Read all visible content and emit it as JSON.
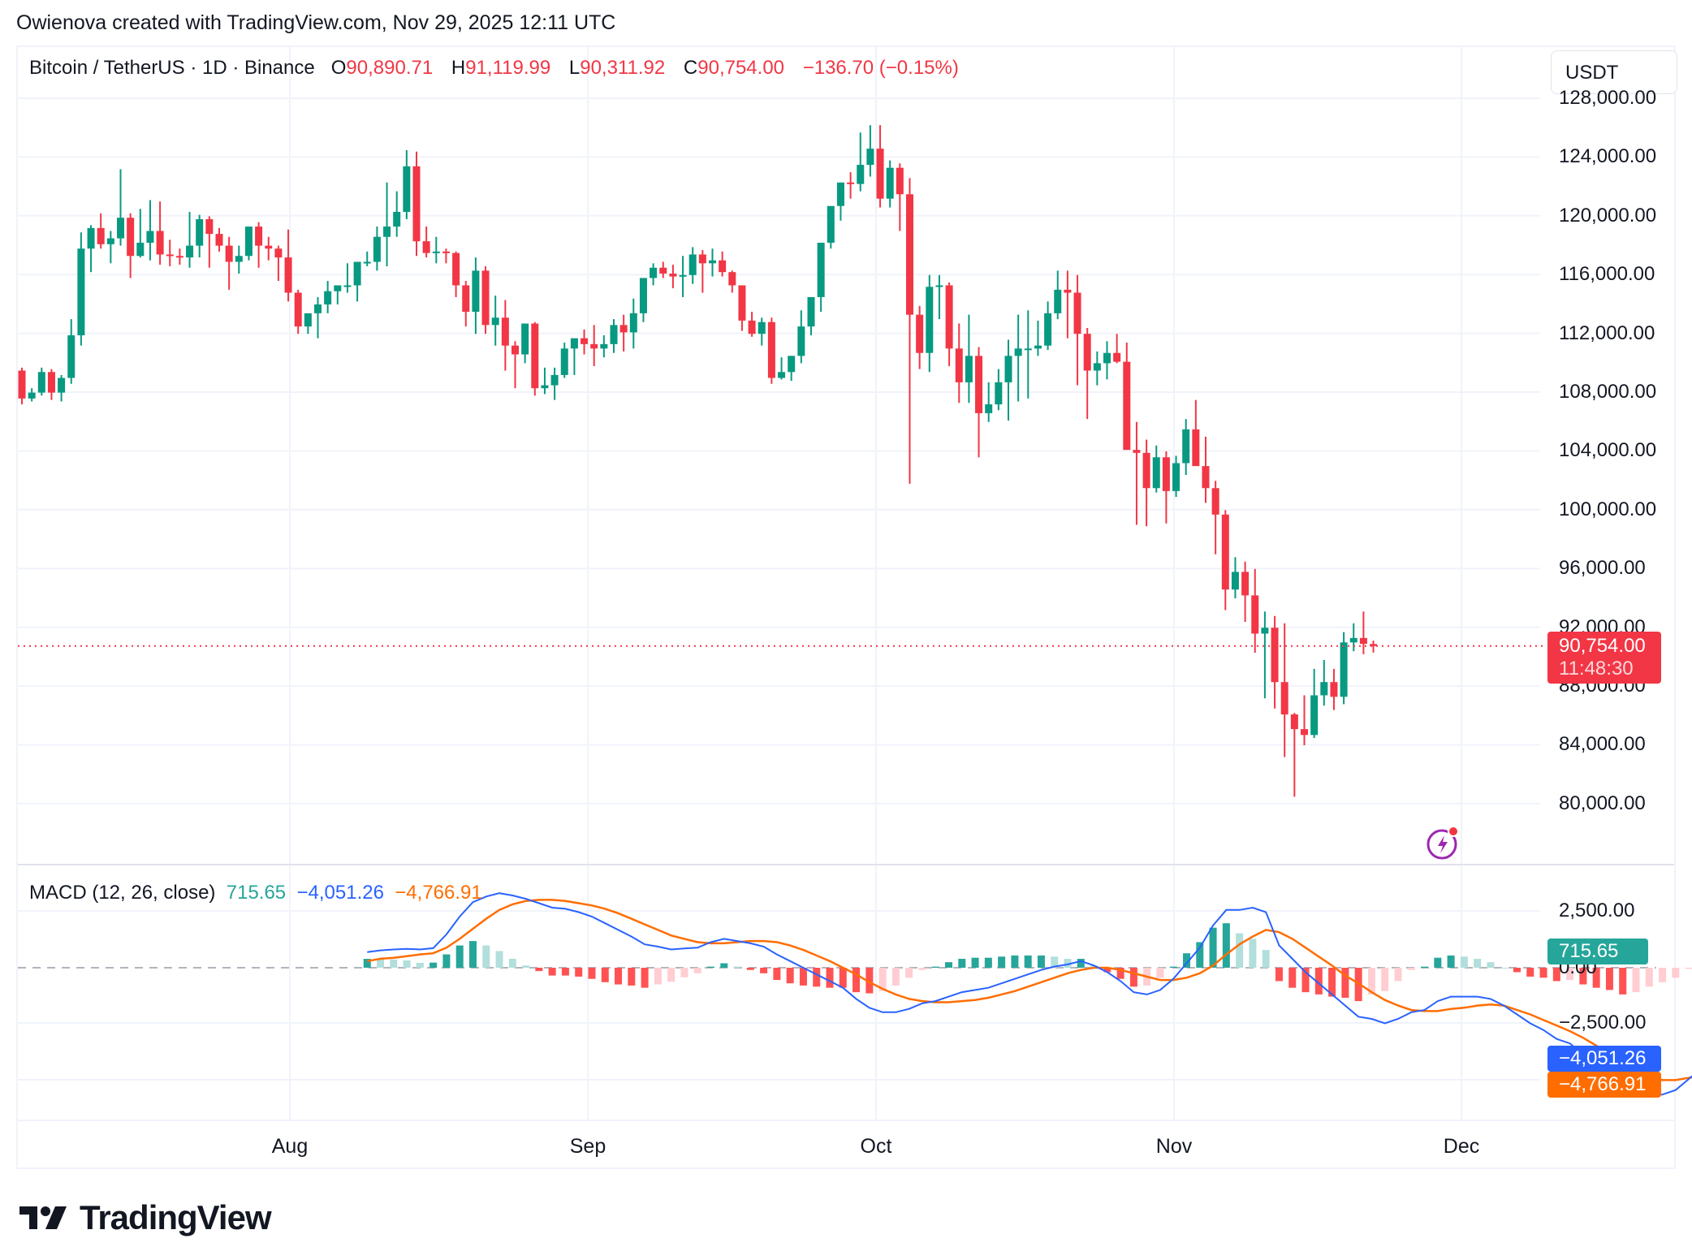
{
  "credit": "Owienova created with TradingView.com, Nov 29, 2025 12:11 UTC",
  "header": {
    "symbol": "Bitcoin / TetherUS · 1D · Binance",
    "o_label": "O",
    "o_value": "90,890.71",
    "h_label": "H",
    "h_value": "91,119.99",
    "l_label": "L",
    "l_value": "90,311.92",
    "c_label": "C",
    "c_value": "90,754.00",
    "change": "−136.70 (−0.15%)"
  },
  "currency_button": "USDT",
  "price_axis": [
    "128,000.00",
    "124,000.00",
    "120,000.00",
    "116,000.00",
    "112,000.00",
    "108,000.00",
    "104,000.00",
    "100,000.00",
    "96,000.00",
    "92,000.00",
    "88,000.00",
    "84,000.00",
    "80,000.00"
  ],
  "last_price": {
    "value": "90,754.00",
    "countdown": "11:48:30"
  },
  "macd": {
    "title": "MACD (12, 26, close)",
    "histogram": "715.65",
    "macd": "−4,051.26",
    "signal": "−4,766.91",
    "axis": [
      "2,500.00",
      "0.00",
      "−2,500.00"
    ]
  },
  "date_axis": [
    "Aug",
    "Sep",
    "Oct",
    "Nov",
    "Dec"
  ],
  "brand": "TradingView",
  "colors": {
    "up": "#089981",
    "down": "#f23645",
    "macd_line": "#2962ff",
    "signal_line": "#ff6d00",
    "hist_up_strong": "#26a69a",
    "hist_up_weak": "#b2dfdb",
    "hist_down_strong": "#ff5252",
    "hist_down_weak": "#ffcdd2"
  },
  "chart_data": [
    {
      "type": "candlestick",
      "title": "Bitcoin / TetherUS · 1D · Binance",
      "ylabel": "USDT",
      "ylim": [
        77000,
        129000
      ],
      "x_ticks": [
        "Aug",
        "Sep",
        "Oct",
        "Nov",
        "Dec"
      ],
      "start_date_approx": "2025-07-09",
      "ohlc": [
        [
          109500,
          109700,
          107200,
          107600
        ],
        [
          107600,
          108300,
          107400,
          108000
        ],
        [
          108000,
          109700,
          107800,
          109400
        ],
        [
          109400,
          109600,
          107500,
          108000
        ],
        [
          108000,
          109200,
          107400,
          109000
        ],
        [
          109000,
          113000,
          108600,
          111900
        ],
        [
          111900,
          118900,
          111200,
          117800
        ],
        [
          117800,
          119400,
          116200,
          119200
        ],
        [
          119200,
          120200,
          117800,
          118100
        ],
        [
          118100,
          119000,
          116800,
          118500
        ],
        [
          118500,
          123200,
          118000,
          119900
        ],
        [
          119900,
          120200,
          115800,
          117300
        ],
        [
          117300,
          120500,
          117200,
          118200
        ],
        [
          118200,
          121100,
          117000,
          119000
        ],
        [
          119000,
          121000,
          116700,
          117400
        ],
        [
          117400,
          118400,
          116600,
          117300
        ],
        [
          117300,
          117800,
          116700,
          117200
        ],
        [
          117200,
          120300,
          116500,
          118000
        ],
        [
          118000,
          120100,
          117200,
          119800
        ],
        [
          119800,
          120000,
          116500,
          118800
        ],
        [
          118800,
          119200,
          117600,
          118000
        ],
        [
          118000,
          118600,
          115000,
          116900
        ],
        [
          116900,
          118000,
          116100,
          117300
        ],
        [
          117300,
          119200,
          117000,
          119300
        ],
        [
          119300,
          119600,
          116500,
          118000
        ],
        [
          118000,
          118600,
          117000,
          117800
        ],
        [
          117800,
          118000,
          115600,
          117200
        ],
        [
          117200,
          119100,
          114200,
          114800
        ],
        [
          114800,
          115000,
          112000,
          112500
        ],
        [
          112500,
          113200,
          112000,
          113400
        ],
        [
          113400,
          114500,
          111700,
          114000
        ],
        [
          114000,
          115600,
          113400,
          114900
        ],
        [
          114900,
          115200,
          114000,
          115300
        ],
        [
          115300,
          116800,
          114800,
          115300
        ],
        [
          115300,
          116800,
          114200,
          116900
        ],
        [
          116900,
          117600,
          116600,
          116900
        ],
        [
          116900,
          119300,
          116300,
          118600
        ],
        [
          118600,
          122300,
          116600,
          119300
        ],
        [
          119300,
          121700,
          118600,
          120300
        ],
        [
          120300,
          124500,
          119800,
          123400
        ],
        [
          123400,
          124400,
          117300,
          118300
        ],
        [
          118300,
          119300,
          117200,
          117500
        ],
        [
          117500,
          118600,
          116800,
          117600
        ],
        [
          117600,
          117800,
          116800,
          117500
        ],
        [
          117500,
          117600,
          114500,
          115300
        ],
        [
          115300,
          115600,
          112500,
          113500
        ],
        [
          113500,
          117200,
          112000,
          116300
        ],
        [
          116300,
          116600,
          112000,
          112600
        ],
        [
          112600,
          114600,
          111200,
          113100
        ],
        [
          113100,
          114300,
          109500,
          111200
        ],
        [
          111200,
          111500,
          108300,
          110600
        ],
        [
          110600,
          112700,
          110000,
          112700
        ],
        [
          112700,
          112800,
          107800,
          108300
        ],
        [
          108300,
          109700,
          107900,
          108500
        ],
        [
          108500,
          109700,
          107500,
          109200
        ],
        [
          109200,
          111400,
          109000,
          111000
        ],
        [
          111000,
          111600,
          109200,
          111700
        ],
        [
          111700,
          112300,
          110600,
          111300
        ],
        [
          111300,
          112600,
          109800,
          111000
        ],
        [
          111000,
          111900,
          110400,
          111300
        ],
        [
          111300,
          113000,
          110700,
          112600
        ],
        [
          112600,
          113300,
          110800,
          112100
        ],
        [
          112100,
          114400,
          111000,
          113400
        ],
        [
          113400,
          115500,
          112800,
          115800
        ],
        [
          115800,
          116800,
          115300,
          116500
        ],
        [
          116500,
          116900,
          115800,
          116100
        ],
        [
          116100,
          116700,
          115100,
          115900
        ],
        [
          115900,
          117300,
          114500,
          116000
        ],
        [
          116000,
          117900,
          115400,
          117400
        ],
        [
          117400,
          117700,
          114800,
          116800
        ],
        [
          116800,
          117800,
          115900,
          117000
        ],
        [
          117000,
          117600,
          115900,
          116200
        ],
        [
          116200,
          116300,
          114800,
          115300
        ],
        [
          115300,
          115300,
          112200,
          112900
        ],
        [
          112900,
          113500,
          111800,
          112000
        ],
        [
          112000,
          113100,
          111200,
          112800
        ],
        [
          112800,
          113100,
          108600,
          109000
        ],
        [
          109000,
          110400,
          108900,
          109400
        ],
        [
          109400,
          110500,
          108800,
          110500
        ],
        [
          110500,
          113600,
          110000,
          112500
        ],
        [
          112500,
          114300,
          111900,
          114500
        ],
        [
          114500,
          117700,
          113500,
          118200
        ],
        [
          118200,
          120100,
          117800,
          120700
        ],
        [
          120700,
          121500,
          119700,
          122300
        ],
        [
          122300,
          123000,
          121200,
          122200
        ],
        [
          122200,
          125700,
          121700,
          123500
        ],
        [
          123500,
          126200,
          122700,
          124600
        ],
        [
          124600,
          126200,
          120600,
          121200
        ],
        [
          121200,
          123800,
          120600,
          123300
        ],
        [
          123300,
          123600,
          119000,
          121500
        ],
        [
          121500,
          122600,
          101800,
          113300
        ],
        [
          113300,
          113900,
          109600,
          110700
        ],
        [
          110700,
          116000,
          109400,
          115200
        ],
        [
          115200,
          116000,
          113000,
          115300
        ],
        [
          115300,
          115500,
          109800,
          111000
        ],
        [
          111000,
          112700,
          107300,
          108700
        ],
        [
          108700,
          113300,
          107300,
          110500
        ],
        [
          110500,
          111100,
          103600,
          106600
        ],
        [
          106600,
          108700,
          106000,
          107200
        ],
        [
          107200,
          109600,
          106800,
          108700
        ],
        [
          108700,
          111600,
          106100,
          110500
        ],
        [
          110500,
          113300,
          107400,
          111000
        ],
        [
          111000,
          113600,
          107600,
          111000
        ],
        [
          111000,
          112900,
          110500,
          111200
        ],
        [
          111200,
          114200,
          110900,
          113400
        ],
        [
          113400,
          116300,
          113000,
          115000
        ],
        [
          115000,
          116300,
          111700,
          114800
        ],
        [
          114800,
          116000,
          108500,
          112000
        ],
        [
          112000,
          112400,
          106200,
          109500
        ],
        [
          109500,
          110800,
          108500,
          110000
        ],
        [
          110000,
          111500,
          108900,
          110700
        ],
        [
          110700,
          112000,
          110000,
          110100
        ],
        [
          110100,
          111400,
          106000,
          104100
        ],
        [
          104100,
          106000,
          99000,
          103900
        ],
        [
          103900,
          104800,
          98900,
          101500
        ],
        [
          101500,
          104400,
          101200,
          103600
        ],
        [
          103600,
          104000,
          99100,
          101300
        ],
        [
          101300,
          103700,
          100900,
          103200
        ],
        [
          103200,
          106200,
          102400,
          105500
        ],
        [
          105500,
          107500,
          104000,
          103000
        ],
        [
          103000,
          105000,
          100500,
          101500
        ],
        [
          101500,
          102000,
          97000,
          99700
        ],
        [
          99700,
          100000,
          93200,
          94600
        ],
        [
          94600,
          96800,
          94000,
          95800
        ],
        [
          95800,
          96500,
          92400,
          94200
        ],
        [
          94200,
          96000,
          90300,
          91600
        ],
        [
          91600,
          93100,
          87200,
          92000
        ],
        [
          92000,
          92800,
          86500,
          88300
        ],
        [
          88300,
          92300,
          83200,
          86100
        ],
        [
          86100,
          86200,
          80500,
          85100
        ],
        [
          85100,
          87400,
          84000,
          84700
        ],
        [
          84700,
          89200,
          84500,
          87400
        ],
        [
          87400,
          89800,
          86700,
          88300
        ],
        [
          88300,
          89200,
          86400,
          87300
        ],
        [
          87300,
          91700,
          86800,
          91000
        ],
        [
          91000,
          92300,
          90400,
          91300
        ],
        [
          91300,
          93100,
          90200,
          90900
        ],
        [
          90890,
          91120,
          90312,
          90754
        ]
      ]
    },
    {
      "type": "macd",
      "title": "MACD (12, 26, close)",
      "ylim": [
        -6200,
        3800
      ],
      "y_ticks": [
        2500,
        0,
        -2500
      ],
      "last": {
        "histogram": 715.65,
        "macd": -4051.26,
        "signal": -4766.91
      },
      "macd_line": [
        700,
        780,
        820,
        850,
        820,
        880,
        1500,
        2300,
        2950,
        3200,
        3350,
        3250,
        3100,
        2900,
        2700,
        2650,
        2500,
        2300,
        2000,
        1700,
        1400,
        1050,
        950,
        820,
        870,
        900,
        1150,
        1300,
        1200,
        1100,
        950,
        600,
        300,
        0,
        -300,
        -600,
        -900,
        -1400,
        -1800,
        -2000,
        -2000,
        -1850,
        -1600,
        -1500,
        -1300,
        -1100,
        -1000,
        -900,
        -700,
        -500,
        -300,
        -100,
        50,
        150,
        300,
        100,
        -200,
        -600,
        -1100,
        -1200,
        -1000,
        -500,
        200,
        900,
        1900,
        2600,
        2600,
        2700,
        2500,
        1000,
        400,
        -200,
        -700,
        -1200,
        -1700,
        -2200,
        -2300,
        -2500,
        -2300,
        -2000,
        -1900,
        -1500,
        -1300,
        -1300,
        -1300,
        -1400,
        -1700,
        -2100,
        -2500,
        -2800,
        -3200,
        -3400,
        -3900,
        -4400,
        -4900,
        -5500,
        -5800,
        -5800,
        -5700,
        -5500,
        -5000,
        -4500,
        -4051
      ],
      "signal_line": [
        300,
        400,
        450,
        520,
        600,
        650,
        900,
        1300,
        1750,
        2200,
        2600,
        2850,
        3000,
        3050,
        3050,
        3000,
        2900,
        2800,
        2650,
        2450,
        2200,
        1950,
        1700,
        1450,
        1300,
        1150,
        1100,
        1100,
        1150,
        1200,
        1200,
        1150,
        1000,
        800,
        550,
        300,
        0,
        -300,
        -650,
        -950,
        -1200,
        -1400,
        -1500,
        -1550,
        -1550,
        -1500,
        -1450,
        -1350,
        -1200,
        -1050,
        -850,
        -650,
        -450,
        -250,
        -100,
        0,
        0,
        -100,
        -250,
        -400,
        -550,
        -550,
        -450,
        -250,
        100,
        600,
        1050,
        1400,
        1700,
        1600,
        1300,
        900,
        500,
        100,
        -350,
        -700,
        -1100,
        -1450,
        -1700,
        -1900,
        -1950,
        -1950,
        -1850,
        -1800,
        -1700,
        -1650,
        -1700,
        -1900,
        -2100,
        -2350,
        -2600,
        -2850,
        -3150,
        -3500,
        -3900,
        -4300,
        -4700,
        -4950,
        -5050,
        -5050,
        -4950,
        -4850,
        -4767
      ]
    }
  ]
}
